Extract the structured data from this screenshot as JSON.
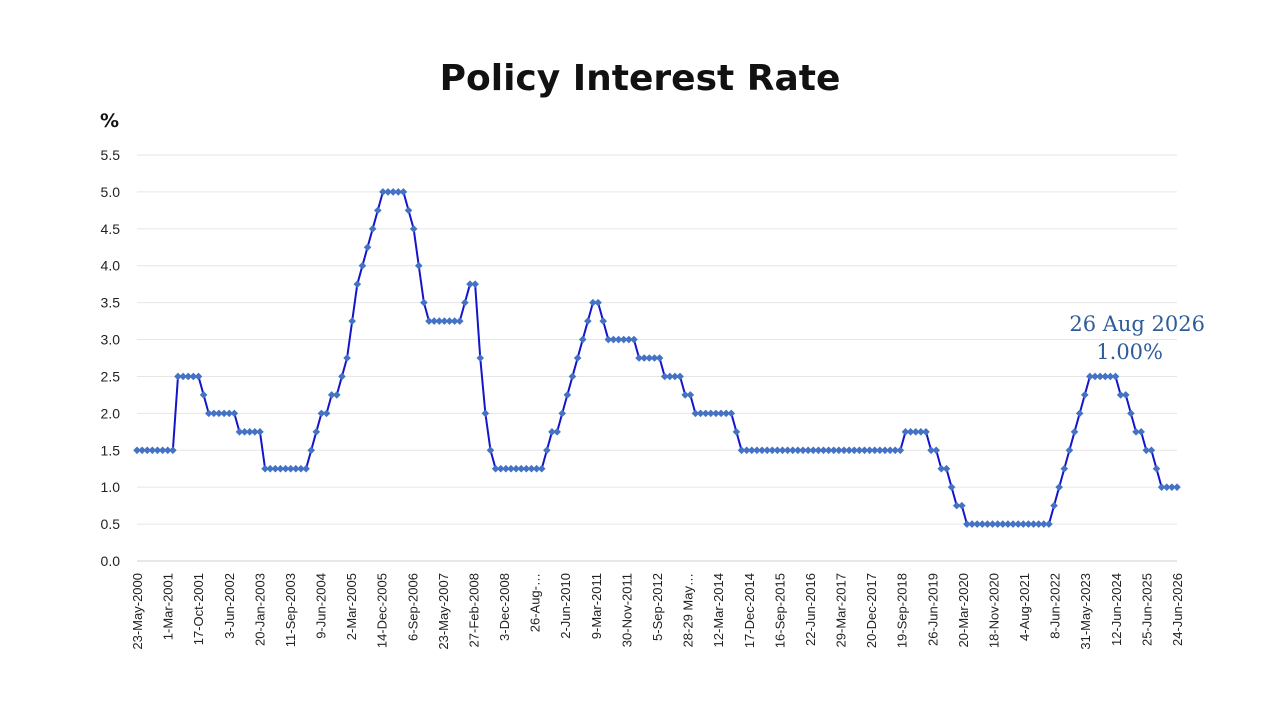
{
  "chart_data": {
    "type": "line",
    "title": "Policy Interest Rate",
    "ylabel": "%",
    "ylim": [
      0,
      5.5
    ],
    "yticks": [
      "0.0",
      "0.5",
      "1.0",
      "1.5",
      "2.0",
      "2.5",
      "3.0",
      "3.5",
      "4.0",
      "4.5",
      "5.0",
      "5.5"
    ],
    "grid": true,
    "xtick_labels": [
      "23-May-2000",
      "1-Mar-2001",
      "17-Oct-2001",
      "3-Jun-2002",
      "20-Jan-2003",
      "11-Sep-2003",
      "9-Jun-2004",
      "2-Mar-2005",
      "14-Dec-2005",
      "6-Sep-2006",
      "23-May-2007",
      "27-Feb-2008",
      "3-Dec-2008",
      "26-Aug-…",
      "2-Jun-2010",
      "9-Mar-2011",
      "30-Nov-2011",
      "5-Sep-2012",
      "28-29 May…",
      "12-Mar-2014",
      "17-Dec-2014",
      "16-Sep-2015",
      "22-Jun-2016",
      "29-Mar-2017",
      "20-Dec-2017",
      "19-Sep-2018",
      "26-Jun-2019",
      "20-Mar-2020",
      "18-Nov-2020",
      "4-Aug-2021",
      "8-Jun-2022",
      "31-May-2023",
      "12-Jun-2024",
      "25-Jun-2025",
      "24-Jun-2026"
    ],
    "series": [
      {
        "color": "#1414cc",
        "marker_color": "#4472c4",
        "values": [
          1.5,
          1.5,
          1.5,
          1.5,
          1.5,
          1.5,
          1.5,
          1.5,
          2.5,
          2.5,
          2.5,
          2.5,
          2.5,
          2.25,
          2.0,
          2.0,
          2.0,
          2.0,
          2.0,
          2.0,
          1.75,
          1.75,
          1.75,
          1.75,
          1.75,
          1.25,
          1.25,
          1.25,
          1.25,
          1.25,
          1.25,
          1.25,
          1.25,
          1.25,
          1.5,
          1.75,
          2.0,
          2.0,
          2.25,
          2.25,
          2.5,
          2.75,
          3.25,
          3.75,
          4.0,
          4.25,
          4.5,
          4.75,
          5.0,
          5.0,
          5.0,
          5.0,
          5.0,
          4.75,
          4.5,
          4.0,
          3.5,
          3.25,
          3.25,
          3.25,
          3.25,
          3.25,
          3.25,
          3.25,
          3.5,
          3.75,
          3.75,
          2.75,
          2.0,
          1.5,
          1.25,
          1.25,
          1.25,
          1.25,
          1.25,
          1.25,
          1.25,
          1.25,
          1.25,
          1.25,
          1.5,
          1.75,
          1.75,
          2.0,
          2.25,
          2.5,
          2.75,
          3.0,
          3.25,
          3.5,
          3.5,
          3.25,
          3.0,
          3.0,
          3.0,
          3.0,
          3.0,
          3.0,
          2.75,
          2.75,
          2.75,
          2.75,
          2.75,
          2.5,
          2.5,
          2.5,
          2.5,
          2.25,
          2.25,
          2.0,
          2.0,
          2.0,
          2.0,
          2.0,
          2.0,
          2.0,
          2.0,
          1.75,
          1.5,
          1.5,
          1.5,
          1.5,
          1.5,
          1.5,
          1.5,
          1.5,
          1.5,
          1.5,
          1.5,
          1.5,
          1.5,
          1.5,
          1.5,
          1.5,
          1.5,
          1.5,
          1.5,
          1.5,
          1.5,
          1.5,
          1.5,
          1.5,
          1.5,
          1.5,
          1.5,
          1.5,
          1.5,
          1.5,
          1.5,
          1.5,
          1.75,
          1.75,
          1.75,
          1.75,
          1.75,
          1.5,
          1.5,
          1.25,
          1.25,
          1.0,
          0.75,
          0.75,
          0.5,
          0.5,
          0.5,
          0.5,
          0.5,
          0.5,
          0.5,
          0.5,
          0.5,
          0.5,
          0.5,
          0.5,
          0.5,
          0.5,
          0.5,
          0.5,
          0.5,
          0.75,
          1.0,
          1.25,
          1.5,
          1.75,
          2.0,
          2.25,
          2.5,
          2.5,
          2.5,
          2.5,
          2.5,
          2.5,
          2.25,
          2.25,
          2.0,
          1.75,
          1.75,
          1.5,
          1.5,
          1.25,
          1.0,
          1.0,
          1.0,
          1.0
        ]
      }
    ],
    "annotation": {
      "date": "26 Aug 2026",
      "value": "1.00%",
      "color": "#2e5c9a"
    }
  }
}
